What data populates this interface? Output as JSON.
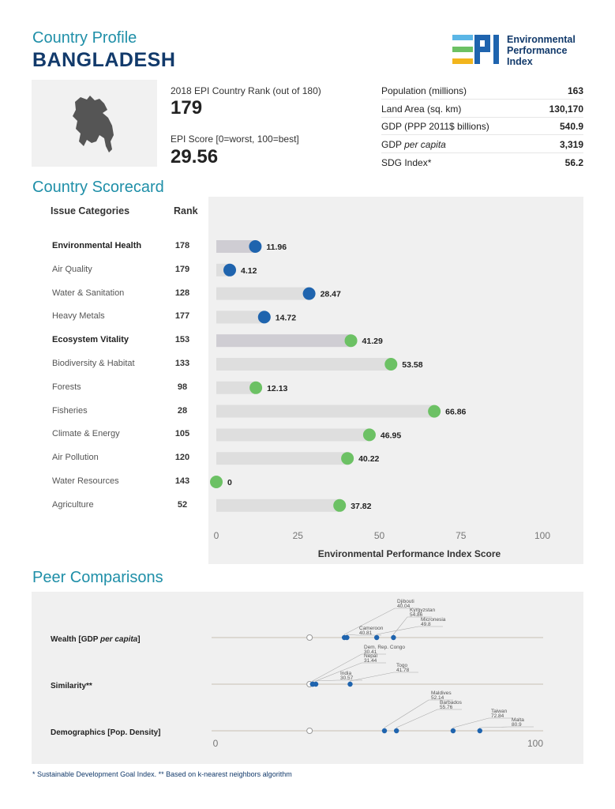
{
  "header": {
    "profile_label": "Country Profile",
    "country": "BANGLADESH",
    "logo_text": [
      "Environmental",
      "Performance",
      "Index"
    ]
  },
  "summary": {
    "rank_label": "2018 EPI Country Rank (out of 180)",
    "rank_value": "179",
    "score_label": "EPI Score [0=worst, 100=best]",
    "score_value": "29.56"
  },
  "stats": [
    {
      "label": "Population (millions)",
      "value": "163"
    },
    {
      "label": "Land Area (sq. km)",
      "value": "130,170"
    },
    {
      "label": "GDP (PPP 2011$ billions)",
      "value": "540.9"
    },
    {
      "label": "GDP per capita",
      "value": "3,319"
    },
    {
      "label": "SDG Index*",
      "value": "56.2"
    }
  ],
  "scorecard": {
    "title": "Country Scorecard",
    "col_category": "Issue Categories",
    "col_rank": "Rank"
  },
  "colors": {
    "teal": "#1f8fa8",
    "navy": "#123a6b",
    "blue_dot": "#1f64ae",
    "green_dot": "#6cc164",
    "bar_dark": "#cfcdd3",
    "bar_light": "#dedede"
  },
  "chart_data": [
    {
      "type": "bar",
      "xlabel": "Environmental Performance Index Score",
      "xlim": [
        0,
        100
      ],
      "xticks": [
        0,
        25,
        50,
        75,
        100
      ],
      "categories": [
        "Environmental Health",
        "Air Quality",
        "Water & Sanitation",
        "Heavy Metals",
        "Ecosystem Vitality",
        "Biodiversity & Habitat",
        "Forests",
        "Fisheries",
        "Climate & Energy",
        "Air Pollution",
        "Water Resources",
        "Agriculture"
      ],
      "ranks": [
        "178",
        "179",
        "128",
        "177",
        "153",
        "133",
        "98",
        "28",
        "105",
        "120",
        "143",
        "52"
      ],
      "values": [
        11.96,
        4.12,
        28.47,
        14.72,
        41.29,
        53.58,
        12.13,
        66.86,
        46.95,
        40.22,
        0,
        37.82
      ],
      "value_labels": [
        "11.96",
        "4.12",
        "28.47",
        "14.72",
        "41.29",
        "53.58",
        "12.13",
        "66.86",
        "46.95",
        "40.22",
        "0",
        "37.82"
      ],
      "objective": [
        "health",
        "health",
        "health",
        "health",
        "ecosystem",
        "ecosystem",
        "ecosystem",
        "ecosystem",
        "ecosystem",
        "ecosystem",
        "ecosystem",
        "ecosystem"
      ],
      "aggregate": [
        true,
        false,
        false,
        false,
        true,
        false,
        false,
        false,
        false,
        false,
        false,
        false
      ]
    },
    {
      "type": "scatter",
      "title": "Peer Comparisons",
      "xlim": [
        0,
        100
      ],
      "xticks": [
        0,
        100
      ],
      "country_value": 29.56,
      "groups": [
        {
          "label_parts": [
            "Wealth ",
            "[GDP ",
            "per capita",
            "]"
          ],
          "peers": [
            {
              "name": "Djibouti",
              "value": 40.04
            },
            {
              "name": "Cameroon",
              "value": 40.81
            },
            {
              "name": "Micronesia",
              "value": 49.8
            },
            {
              "name": "Kyrgyzstan",
              "value": 54.86
            }
          ]
        },
        {
          "label_parts": [
            "Similarity**"
          ],
          "peers": [
            {
              "name": "Dem. Rep. Congo",
              "value": 30.41
            },
            {
              "name": "India",
              "value": 30.57
            },
            {
              "name": "Nepal",
              "value": 31.44
            },
            {
              "name": "Togo",
              "value": 41.78
            }
          ]
        },
        {
          "label_parts": [
            "Demographics ",
            "[Pop. Density]"
          ],
          "peers": [
            {
              "name": "Maldives",
              "value": 52.14
            },
            {
              "name": "Barbados",
              "value": 55.76
            },
            {
              "name": "Taiwan",
              "value": 72.84
            },
            {
              "name": "Malta",
              "value": 80.9
            }
          ]
        }
      ]
    }
  ],
  "footnote": "* Sustainable Development Goal Index. ** Based on k-nearest neighbors algorithm"
}
